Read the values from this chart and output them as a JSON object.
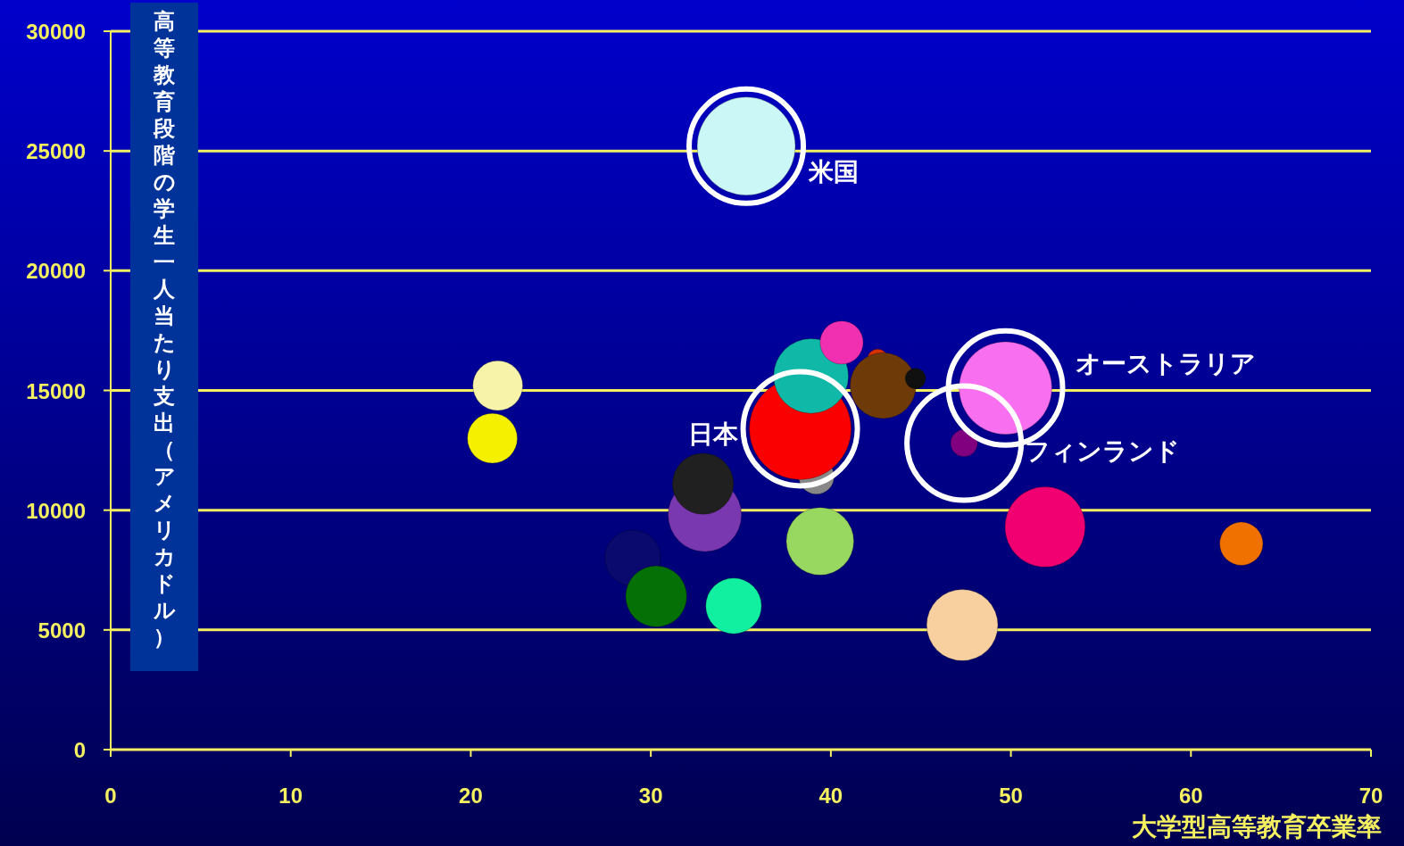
{
  "chart_data": {
    "type": "bubble",
    "xlabel": "大学型高等教育卒業率",
    "ylabel": "高等教育段階の学生一人当たり支出（アメリカドル）",
    "x": [
      35.3,
      21.5,
      21.2,
      29.0,
      30.3,
      33.0,
      32.9,
      34.6,
      39.2,
      38.3,
      38.9,
      40.6,
      39.4,
      42.6,
      42.9,
      44.7,
      49.7,
      47.4,
      51.9,
      47.3,
      62.8
    ],
    "values": [
      25200,
      15200,
      13000,
      8000,
      6400,
      9800,
      11100,
      6000,
      11400,
      13400,
      15600,
      17000,
      8700,
      16300,
      15200,
      15500,
      15100,
      12800,
      9300,
      5200,
      8600
    ],
    "sizes": [
      0.93,
      0.24,
      0.24,
      0.3,
      0.36,
      0.52,
      0.36,
      0.3,
      0.12,
      1,
      0.54,
      0.18,
      0.44,
      0.04,
      0.42,
      0.04,
      0.83,
      0.07,
      0.62,
      0.49,
      0.18
    ],
    "colors": [
      "#ccf7f7",
      "#f7f3a8",
      "#f5f000",
      "#0a0a6e",
      "#057005",
      "#7a38b0",
      "#202020",
      "#10f0a0",
      "#888888",
      "#fa0000",
      "#10b8a8",
      "#f030b0",
      "#98d860",
      "#d83000",
      "#6e3a08",
      "#101010",
      "#f870f0",
      "#800080",
      "#f00070",
      "#f8d0a0",
      "#f07000"
    ],
    "xlim": [
      0,
      70
    ],
    "ylim": [
      0,
      30000
    ],
    "xticks": [
      0,
      10,
      20,
      30,
      40,
      50,
      60,
      70
    ],
    "yticks": [
      0,
      5000,
      10000,
      15000,
      20000,
      25000,
      30000
    ],
    "grid": "y",
    "annotations": [
      {
        "text": "米国",
        "x": 35.3,
        "y": 25200
      },
      {
        "text": "オーストラリア",
        "x": 49.7,
        "y": 15100
      },
      {
        "text": "フィンランド",
        "x": 47.4,
        "y": 12800
      },
      {
        "text": "日本",
        "x": 38.3,
        "y": 13400
      }
    ]
  }
}
